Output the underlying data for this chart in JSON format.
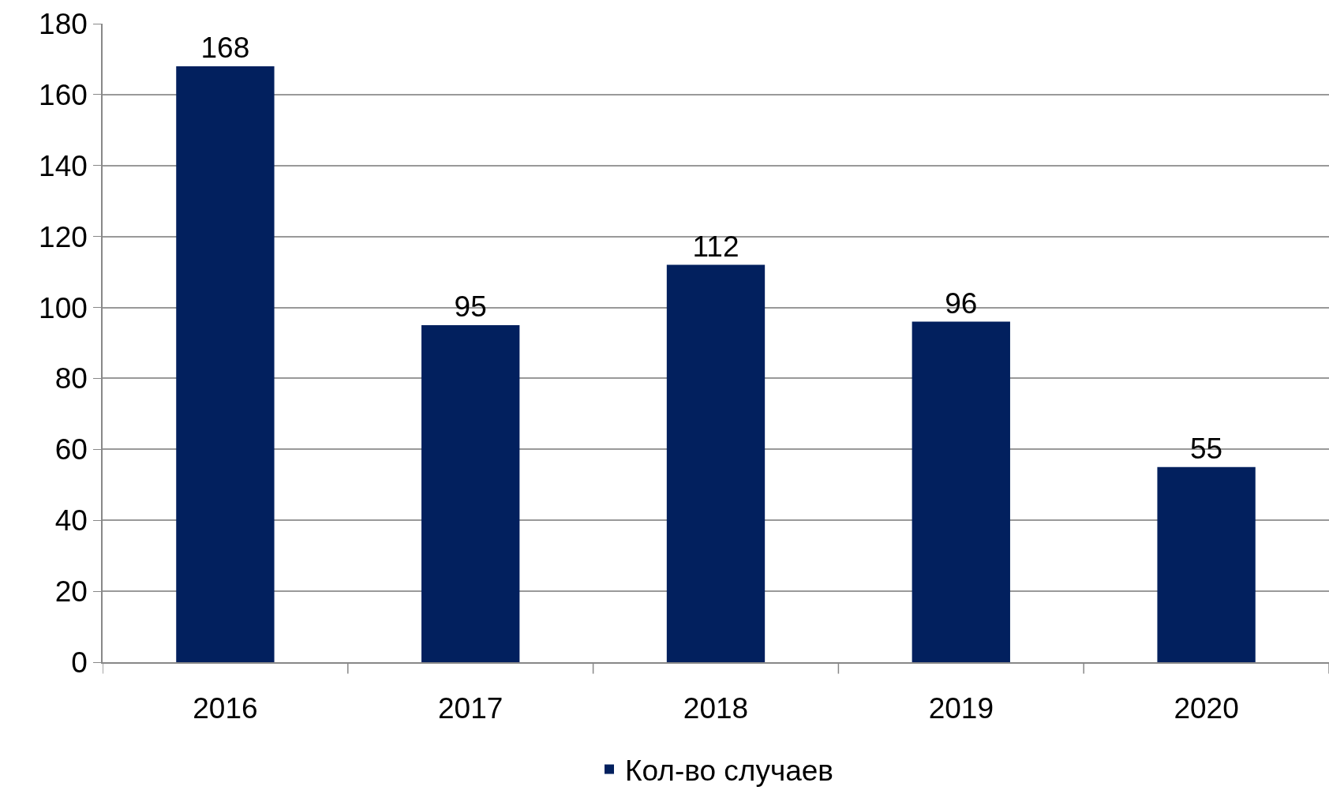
{
  "chart_data": {
    "type": "bar",
    "categories": [
      "2016",
      "2017",
      "2018",
      "2019",
      "2020"
    ],
    "series": [
      {
        "name": "Кол-во случаев",
        "color": "#02205e",
        "values": [
          168,
          95,
          112,
          96,
          55
        ]
      }
    ],
    "ylim": [
      0,
      180
    ],
    "yticks": [
      0,
      20,
      40,
      60,
      80,
      100,
      120,
      140,
      160,
      180
    ],
    "grid": "y",
    "legend": "bottom",
    "data_labels": true
  }
}
